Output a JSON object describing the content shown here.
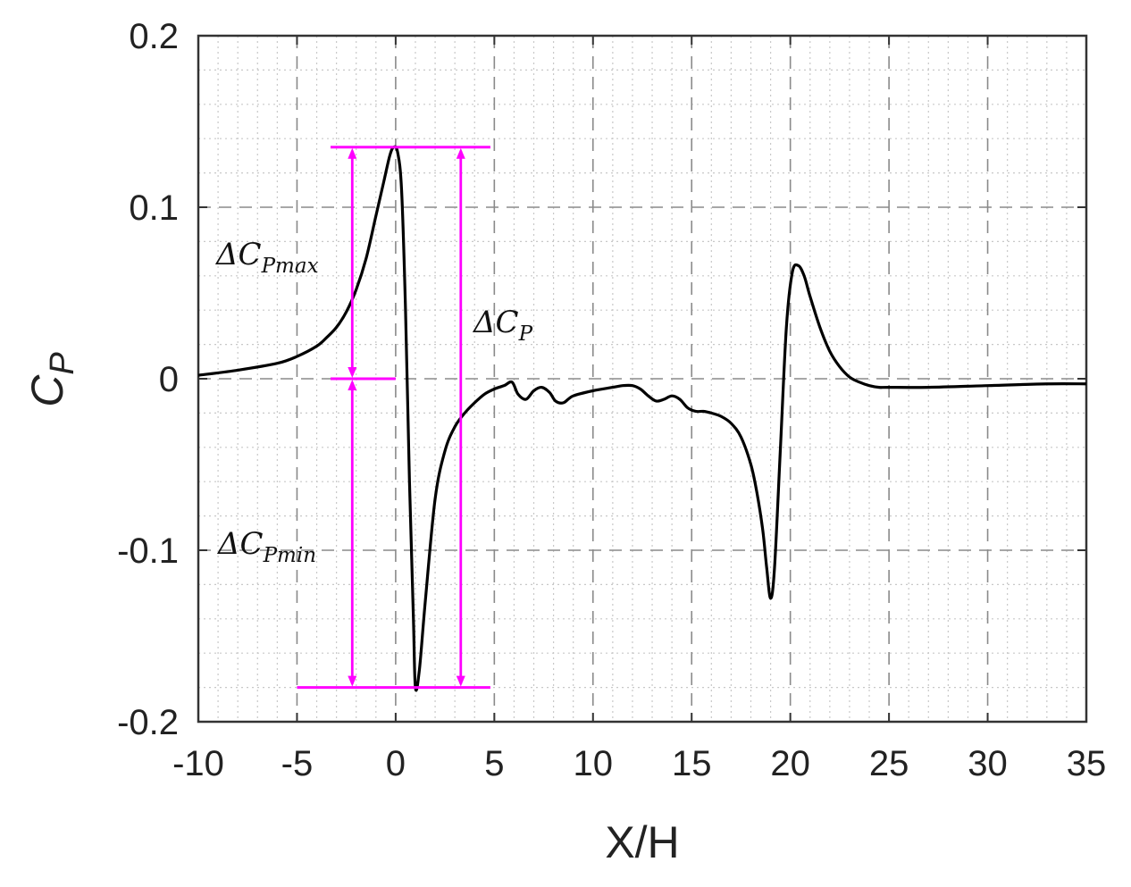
{
  "chart_data": {
    "type": "line",
    "title": "",
    "xlabel": "X/H",
    "ylabel": {
      "main": "C",
      "sub": "P"
    },
    "xlim": [
      -10,
      35
    ],
    "ylim": [
      -0.2,
      0.2
    ],
    "xticks": [
      -10,
      -5,
      0,
      5,
      10,
      15,
      20,
      25,
      30,
      35
    ],
    "yticks": [
      0.2,
      0.1,
      0,
      -0.1,
      -0.2
    ],
    "xtick_labels": [
      "-10",
      "-5",
      "0",
      "5",
      "10",
      "15",
      "20",
      "25",
      "30",
      "35"
    ],
    "ytick_labels": [
      "0.2",
      "0.1",
      "0",
      "-0.1",
      "-0.2"
    ],
    "grid": true,
    "series": [
      {
        "color": "#000000",
        "x": [
          -10,
          -8,
          -6,
          -5,
          -4,
          -3.5,
          -3,
          -2.5,
          -2,
          -1.5,
          -1,
          -0.6,
          -0.3,
          -0.1,
          0.1,
          0.3,
          0.5,
          0.7,
          0.9,
          1.0,
          1.2,
          1.5,
          2,
          2.5,
          3,
          3.5,
          4,
          4.5,
          5,
          5.5,
          5.9,
          6.2,
          6.6,
          7,
          7.4,
          7.8,
          8.1,
          8.5,
          9,
          10,
          11,
          11.5,
          12,
          12.4,
          12.8,
          13.2,
          13.6,
          14,
          14.4,
          14.8,
          15.2,
          15.6,
          16,
          16.5,
          17,
          17.5,
          18,
          18.3,
          18.6,
          18.8,
          19.0,
          19.2,
          19.5,
          19.8,
          20.1,
          20.4,
          20.7,
          21,
          21.5,
          22,
          22.5,
          23,
          23.5,
          24,
          24.5,
          25,
          27,
          30,
          33,
          35
        ],
        "y": [
          0.002,
          0.005,
          0.009,
          0.013,
          0.019,
          0.024,
          0.03,
          0.039,
          0.052,
          0.07,
          0.095,
          0.115,
          0.13,
          0.135,
          0.132,
          0.11,
          0.04,
          -0.06,
          -0.14,
          -0.18,
          -0.17,
          -0.13,
          -0.07,
          -0.042,
          -0.028,
          -0.02,
          -0.014,
          -0.009,
          -0.006,
          -0.004,
          -0.002,
          -0.009,
          -0.012,
          -0.007,
          -0.005,
          -0.008,
          -0.013,
          -0.014,
          -0.01,
          -0.007,
          -0.005,
          -0.004,
          -0.004,
          -0.006,
          -0.01,
          -0.013,
          -0.012,
          -0.01,
          -0.012,
          -0.017,
          -0.019,
          -0.019,
          -0.02,
          -0.022,
          -0.026,
          -0.034,
          -0.05,
          -0.066,
          -0.088,
          -0.11,
          -0.128,
          -0.11,
          -0.04,
          0.03,
          0.062,
          0.066,
          0.06,
          0.048,
          0.03,
          0.016,
          0.007,
          0.001,
          -0.002,
          -0.004,
          -0.005,
          -0.005,
          -0.005,
          -0.004,
          -0.003,
          -0.003
        ]
      }
    ],
    "annotations": {
      "color": "#ff00ff",
      "cp_max": 0.135,
      "cp_min": -0.18,
      "cp_zero": 0,
      "top_line_x": [
        -3.3,
        4.8
      ],
      "bottom_line_x": [
        -5,
        4.8
      ],
      "zero_line_x": [
        -3.3,
        0
      ],
      "arrow_max_x": -2.2,
      "arrow_min_x": -2.2,
      "arrow_total_x": 3.3,
      "labels": [
        {
          "name": "delta-cp-max",
          "main": "ΔC",
          "sub": "Pmax"
        },
        {
          "name": "delta-cp",
          "main": "ΔC",
          "sub": "P"
        },
        {
          "name": "delta-cp-min",
          "main": "ΔC",
          "sub": "Pmin"
        }
      ]
    }
  }
}
